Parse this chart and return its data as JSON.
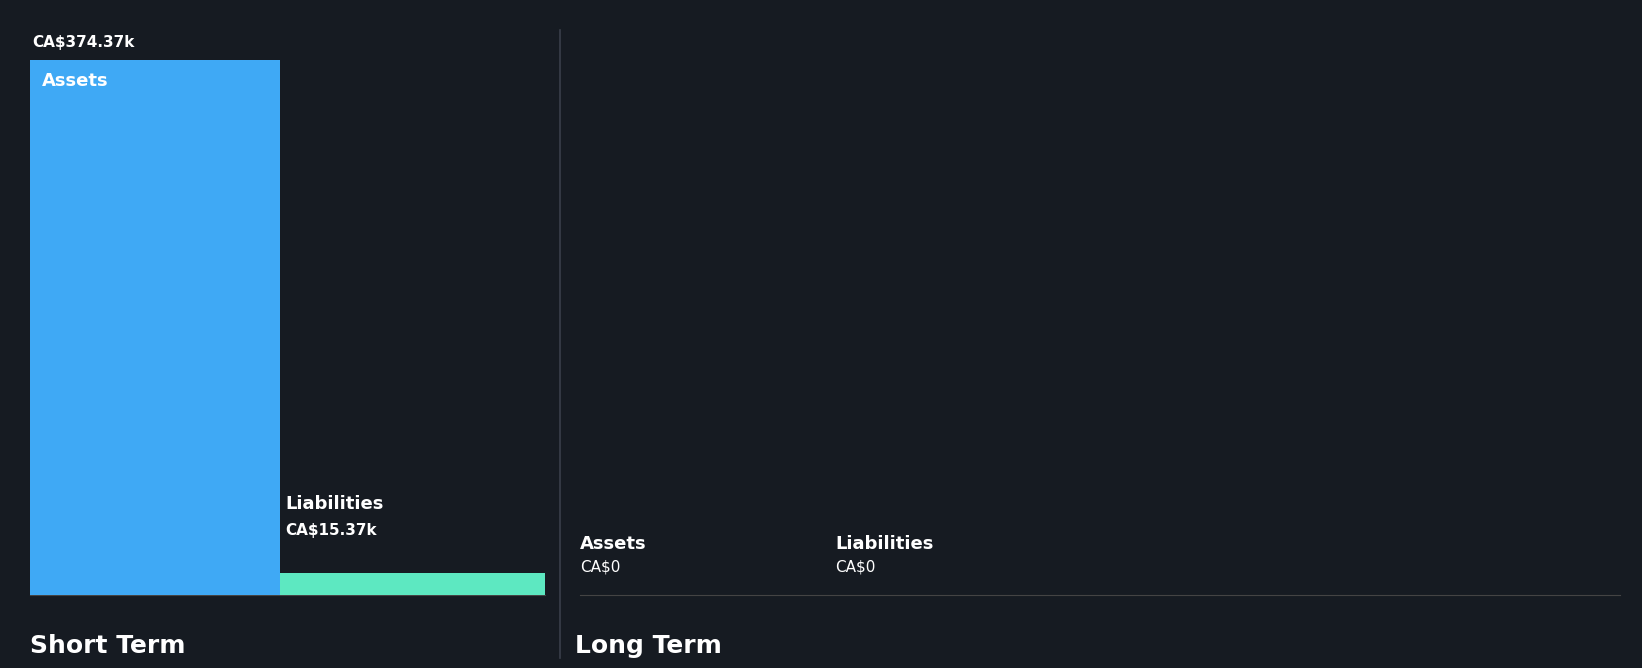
{
  "background_color": "#161b22",
  "short_term": {
    "assets_value": 374370,
    "assets_label": "Assets",
    "assets_value_label": "CA$374.37k",
    "assets_color": "#3fa9f5",
    "liabilities_value": 15370,
    "liabilities_label": "Liabilities",
    "liabilities_value_label": "CA$15.37k",
    "liabilities_color": "#5de8c1"
  },
  "long_term": {
    "assets_value": 0,
    "assets_label": "Assets",
    "assets_value_label": "CA$0",
    "assets_color": "#3fa9f5",
    "liabilities_value": 0,
    "liabilities_label": "Liabilities",
    "liabilities_value_label": "CA$0",
    "liabilities_color": "#5de8c1"
  },
  "section_labels": [
    "Short Term",
    "Long Term"
  ],
  "text_color": "#ffffff",
  "divider_color": "#3a3f4a",
  "label_fontsize": 11,
  "value_fontsize": 11,
  "section_fontsize": 18,
  "bar_label_fontsize": 13,
  "bar_value_fontsize": 11
}
